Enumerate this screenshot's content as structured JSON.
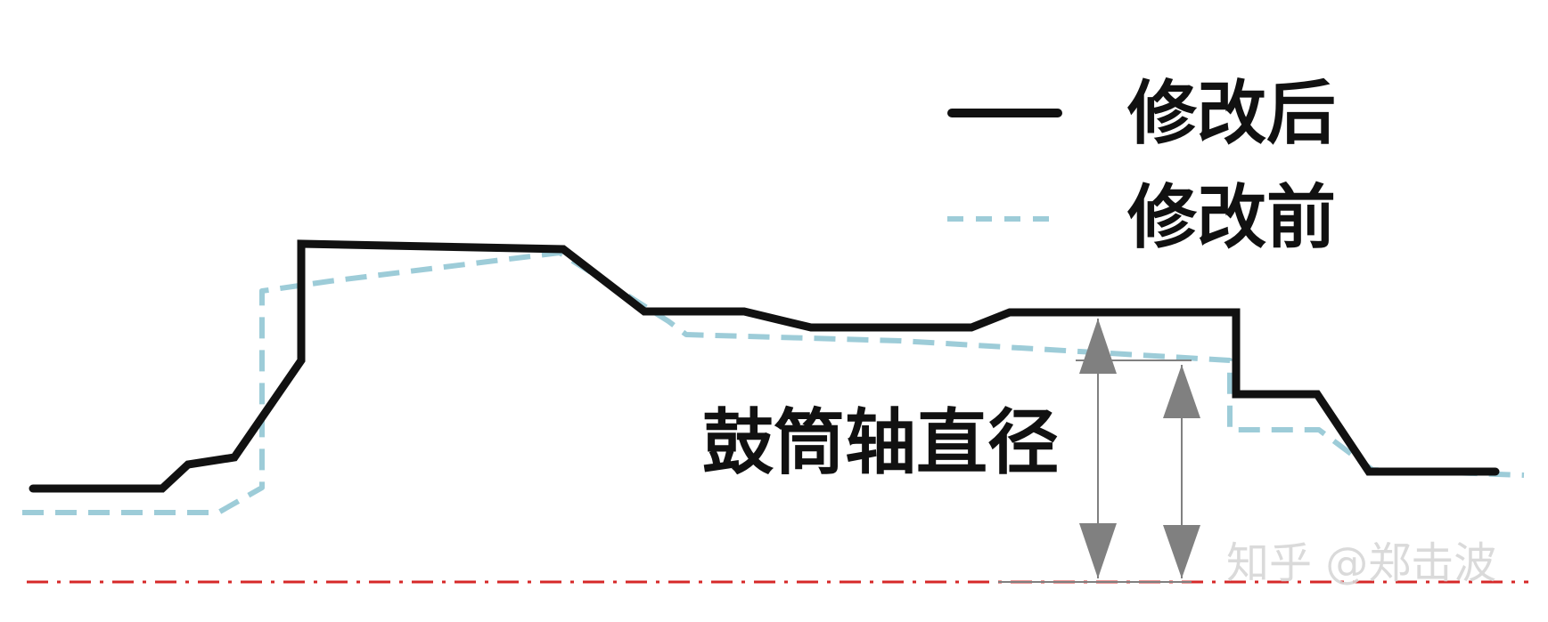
{
  "legend": {
    "after_label": "修改后",
    "before_label": "修改前"
  },
  "callout": {
    "label": "鼓筒轴直径"
  },
  "watermark": {
    "text": "知乎 @郑击波"
  },
  "colors": {
    "after_line": "#111111",
    "before_line": "#9dccd8",
    "centerline": "#d62828",
    "dimension": "#808080",
    "watermark": "#d7d7d7"
  }
}
